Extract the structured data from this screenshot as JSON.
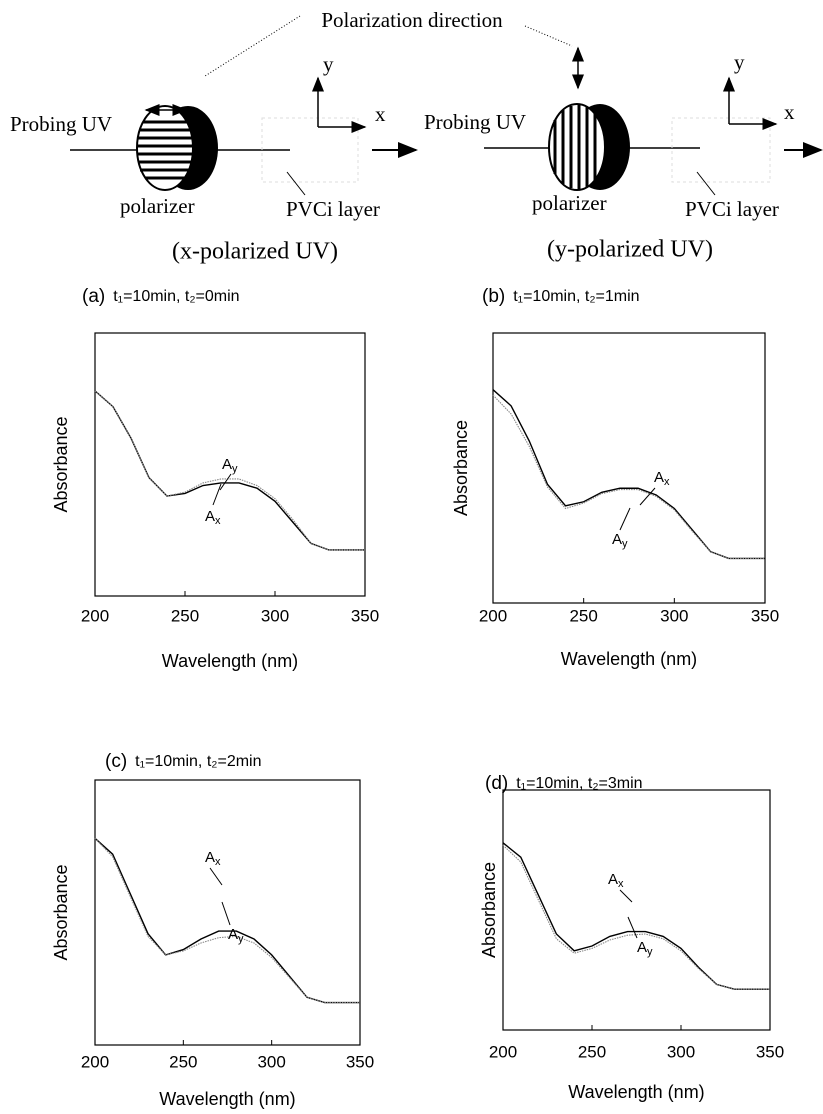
{
  "diagram": {
    "caption": "Polarization direction",
    "panels": [
      {
        "source": "Probing UV",
        "polarizer": "polarizer",
        "layer": "PVCi layer",
        "axis_x": "x",
        "axis_y": "y",
        "caption": "(x-polarized UV)"
      },
      {
        "source": "Probing UV",
        "polarizer": "polarizer",
        "layer": "PVCi layer",
        "axis_x": "x",
        "axis_y": "y",
        "caption": "(y-polarized UV)"
      }
    ]
  },
  "chart_data": [
    {
      "type": "line",
      "title": "(a)",
      "subtitle": "t₁=10min, t₂=0min",
      "xlabel": "Wavelength (nm)",
      "ylabel": "Absorbance",
      "x": [
        200,
        210,
        220,
        230,
        240,
        250,
        260,
        270,
        280,
        290,
        300,
        310,
        320,
        330,
        340,
        350
      ],
      "xlim": [
        200,
        350
      ],
      "xticks": [
        200,
        250,
        300,
        350
      ],
      "ylim": [
        0,
        1
      ],
      "series": [
        {
          "name": "A",
          "subscript": "x",
          "color": "#000000",
          "values": [
            0.78,
            0.72,
            0.6,
            0.45,
            0.38,
            0.39,
            0.42,
            0.43,
            0.43,
            0.41,
            0.36,
            0.28,
            0.2,
            0.175,
            0.175,
            0.175
          ]
        },
        {
          "name": "A",
          "subscript": "y",
          "color": "#888888",
          "values": [
            0.78,
            0.72,
            0.6,
            0.45,
            0.38,
            0.395,
            0.43,
            0.445,
            0.445,
            0.42,
            0.37,
            0.29,
            0.2,
            0.175,
            0.175,
            0.175
          ]
        }
      ]
    },
    {
      "type": "line",
      "title": "(b)",
      "subtitle": "t₁=10min, t₂=1min",
      "xlabel": "Wavelength (nm)",
      "ylabel": "Absorbance",
      "x": [
        200,
        210,
        220,
        230,
        240,
        250,
        260,
        270,
        280,
        290,
        300,
        310,
        320,
        330,
        340,
        350
      ],
      "xlim": [
        200,
        350
      ],
      "xticks": [
        200,
        250,
        300,
        350
      ],
      "ylim": [
        0,
        1
      ],
      "series": [
        {
          "name": "A",
          "subscript": "x",
          "color": "#000000",
          "values": [
            0.79,
            0.73,
            0.6,
            0.44,
            0.36,
            0.375,
            0.41,
            0.425,
            0.425,
            0.4,
            0.35,
            0.27,
            0.19,
            0.165,
            0.165,
            0.165
          ]
        },
        {
          "name": "A",
          "subscript": "y",
          "color": "#888888",
          "values": [
            0.77,
            0.7,
            0.58,
            0.43,
            0.35,
            0.37,
            0.405,
            0.42,
            0.42,
            0.395,
            0.345,
            0.265,
            0.19,
            0.165,
            0.165,
            0.165
          ]
        }
      ]
    },
    {
      "type": "line",
      "title": "(c)",
      "subtitle": "t₁=10min, t₂=2min",
      "xlabel": "Wavelength (nm)",
      "ylabel": "Absorbance",
      "x": [
        200,
        210,
        220,
        230,
        240,
        250,
        260,
        270,
        280,
        290,
        300,
        310,
        320,
        330,
        340,
        350
      ],
      "xlim": [
        200,
        350
      ],
      "xticks": [
        200,
        250,
        300,
        350
      ],
      "ylim": [
        0,
        1
      ],
      "series": [
        {
          "name": "A",
          "subscript": "x",
          "color": "#000000",
          "values": [
            0.78,
            0.72,
            0.57,
            0.42,
            0.34,
            0.36,
            0.4,
            0.43,
            0.43,
            0.4,
            0.34,
            0.26,
            0.18,
            0.16,
            0.16,
            0.16
          ]
        },
        {
          "name": "A",
          "subscript": "y",
          "color": "#888888",
          "values": [
            0.78,
            0.71,
            0.56,
            0.41,
            0.34,
            0.355,
            0.385,
            0.405,
            0.41,
            0.385,
            0.33,
            0.255,
            0.18,
            0.16,
            0.16,
            0.16
          ]
        }
      ]
    },
    {
      "type": "line",
      "title": "(d)",
      "subtitle": "t₁=10min, t₂=3min",
      "xlabel": "Wavelength (nm)",
      "ylabel": "Absorbance",
      "x": [
        200,
        210,
        220,
        230,
        240,
        250,
        260,
        270,
        280,
        290,
        300,
        310,
        320,
        330,
        340,
        350
      ],
      "xlim": [
        200,
        350
      ],
      "xticks": [
        200,
        250,
        300,
        350
      ],
      "ylim": [
        0,
        1
      ],
      "series": [
        {
          "name": "A",
          "subscript": "x",
          "color": "#000000",
          "values": [
            0.78,
            0.72,
            0.56,
            0.4,
            0.33,
            0.35,
            0.39,
            0.41,
            0.41,
            0.39,
            0.34,
            0.26,
            0.19,
            0.17,
            0.17,
            0.17
          ]
        },
        {
          "name": "A",
          "subscript": "y",
          "color": "#888888",
          "values": [
            0.77,
            0.7,
            0.54,
            0.38,
            0.32,
            0.34,
            0.375,
            0.395,
            0.4,
            0.38,
            0.33,
            0.255,
            0.19,
            0.17,
            0.17,
            0.17
          ]
        }
      ]
    }
  ]
}
